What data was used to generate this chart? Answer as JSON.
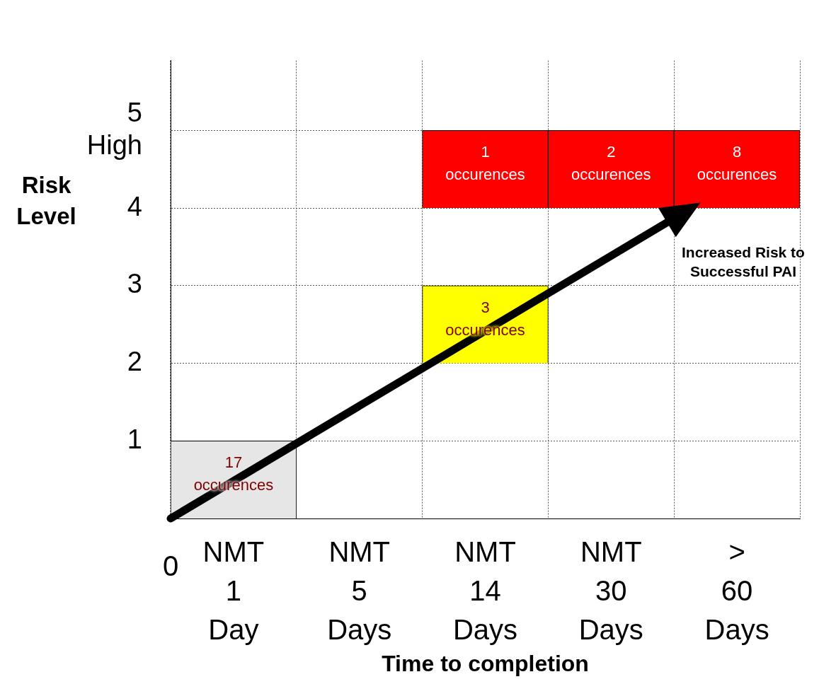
{
  "chart_data": {
    "type": "bar",
    "xlabel": "Time to completion",
    "ylabel": "Risk Level",
    "categories": [
      "NMT 1 Day",
      "NMT 5 Days",
      "NMT 14 Days",
      "NMT 30 Days",
      "> 60 Days"
    ],
    "series": [
      {
        "colors": [
          "#e6e6e6",
          null,
          "#ffff00",
          null,
          null
        ],
        "values": [
          1,
          null,
          1,
          null,
          null
        ],
        "base": [
          0,
          null,
          2,
          null,
          null
        ]
      },
      {
        "colors": [
          null,
          null,
          "#ff0000",
          "#ff0000",
          "#ff0000"
        ],
        "values": [
          null,
          null,
          1,
          1,
          1
        ],
        "base": [
          null,
          null,
          4,
          4,
          4
        ]
      }
    ],
    "ylim": [
      0,
      5.9
    ],
    "yticks": [
      1,
      2,
      3,
      4,
      {
        "value": 5,
        "label": "5 High"
      }
    ],
    "grid": true,
    "annotations": [
      "17 occurences",
      "3 occurences",
      "1 occurences",
      "2 occurences",
      "8 occurences",
      "0",
      "Increased Risk to Successful PAI"
    ]
  }
}
